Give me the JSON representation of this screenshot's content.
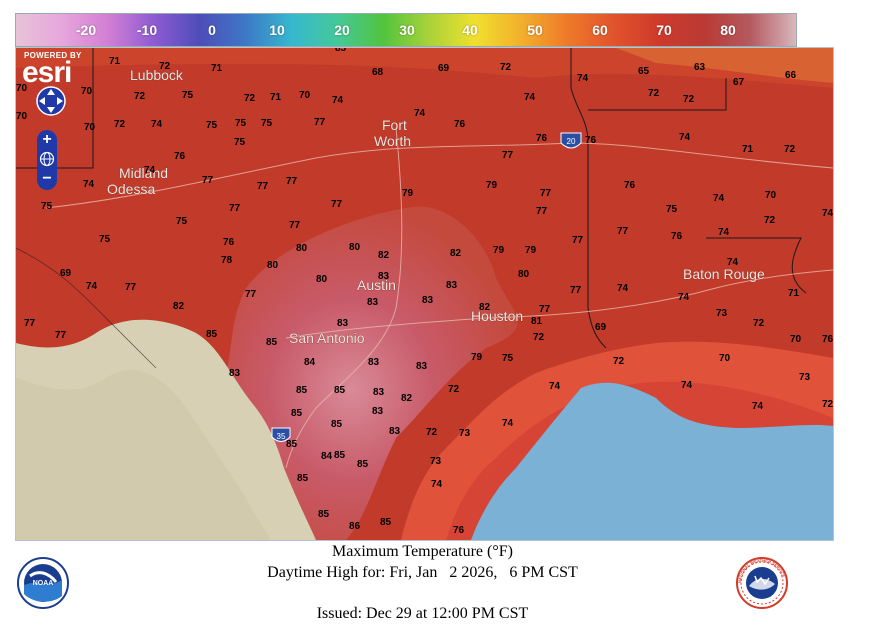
{
  "legend": {
    "labels": [
      "-20",
      "-10",
      "0",
      "10",
      "20",
      "30",
      "40",
      "50",
      "60",
      "70",
      "80"
    ],
    "colors": [
      "#e7c3d8",
      "#e7a6dc",
      "#d37fd4",
      "#8e5cd2",
      "#4e4db8",
      "#3d78c6",
      "#36b8ce",
      "#45c89a",
      "#52c43e",
      "#a8d23a",
      "#f0e02e",
      "#f2b02c",
      "#ef7a2a",
      "#e2542c",
      "#cf3a2c",
      "#b93a34",
      "#b45a60",
      "#d8b8be"
    ]
  },
  "map": {
    "controls": {
      "powered_by": "POWERED BY",
      "brand": "esri",
      "zoom_in": "+",
      "zoom_out": "−"
    },
    "cities": [
      {
        "name": "Lubbock",
        "ref": "lubbock"
      },
      {
        "name": "Fort",
        "ref": "fort"
      },
      {
        "name": "Worth",
        "ref": "worth"
      },
      {
        "name": "Midland",
        "ref": "midland"
      },
      {
        "name": "Odessa",
        "ref": "odessa"
      },
      {
        "name": "Austin",
        "ref": "austin"
      },
      {
        "name": "San Antonio",
        "ref": "sanantonio"
      },
      {
        "name": "Houston",
        "ref": "houston"
      },
      {
        "name": "Baton Rouge",
        "ref": "batonrouge"
      }
    ],
    "highway_shields": [
      "20",
      "35"
    ],
    "temperatures": [
      "85",
      "71",
      "72",
      "71",
      "68",
      "69",
      "72",
      "74",
      "65",
      "63",
      "67",
      "66",
      "70",
      "70",
      "72",
      "75",
      "72",
      "71",
      "70",
      "74",
      "74",
      "72",
      "72",
      "70",
      "70",
      "72",
      "74",
      "75",
      "75",
      "75",
      "77",
      "74",
      "76",
      "76",
      "74",
      "76",
      "75",
      "76",
      "71",
      "72",
      "74",
      "74",
      "77",
      "77",
      "77",
      "79",
      "77",
      "77",
      "76",
      "70",
      "74",
      "75",
      "77",
      "77",
      "79",
      "77",
      "75",
      "74",
      "72",
      "74",
      "75",
      "75",
      "76",
      "77",
      "80",
      "80",
      "82",
      "82",
      "79",
      "79",
      "77",
      "77",
      "76",
      "74",
      "69",
      "77",
      "78",
      "80",
      "80",
      "83",
      "80",
      "83",
      "77",
      "74",
      "71",
      "77",
      "82",
      "77",
      "83",
      "83",
      "82",
      "81",
      "77",
      "74",
      "73",
      "72",
      "77",
      "74",
      "85",
      "83",
      "69",
      "70",
      "76",
      "85",
      "84",
      "83",
      "83",
      "79",
      "75",
      "72",
      "72",
      "70",
      "73",
      "83",
      "85",
      "85",
      "83",
      "82",
      "72",
      "74",
      "74",
      "74",
      "85",
      "83",
      "74",
      "85",
      "85",
      "83",
      "72",
      "73",
      "72",
      "85",
      "84",
      "85",
      "73",
      "85",
      "74",
      "85",
      "86",
      "85",
      "76"
    ]
  },
  "caption": {
    "line1": "Maximum Temperature (°F)",
    "line2": "Daytime High for: Fri, Jan   2 2026,   6 PM CST",
    "line3": "Issued: Dec 29 at 12:00 PM CST"
  },
  "logos": {
    "left": "NOAA",
    "right": "NATIONAL WEATHER SERVICE"
  }
}
